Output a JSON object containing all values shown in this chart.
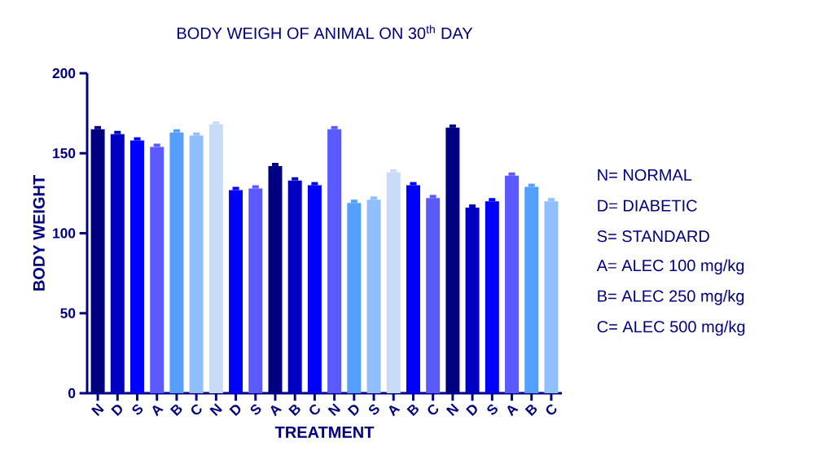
{
  "chart_data": {
    "type": "bar",
    "title": "BODY WEIGH OF ANIMAL ON 30$^{th}$ DAY",
    "xlabel": "TREATMENT",
    "ylabel": "BODY WEIGHT",
    "categories": [
      "N",
      "D",
      "S",
      "A",
      "B",
      "C",
      "N",
      "D",
      "S",
      "A",
      "B",
      "C",
      "N",
      "D",
      "S",
      "A",
      "B",
      "C",
      "N",
      "D",
      "S",
      "A",
      "B",
      "C"
    ],
    "values": [
      165,
      162,
      158,
      154,
      163,
      161,
      168,
      127,
      128,
      142,
      133,
      130,
      165,
      119,
      121,
      138,
      130,
      122,
      166,
      116,
      120,
      136,
      129,
      120
    ],
    "errors": [
      [
        165,
        167
      ],
      [
        162,
        164
      ],
      [
        158,
        160
      ],
      [
        154,
        156
      ],
      [
        163,
        165
      ],
      [
        161,
        163
      ],
      [
        168,
        170
      ],
      [
        127,
        129
      ],
      [
        128,
        130
      ],
      [
        142,
        144
      ],
      [
        133,
        135
      ],
      [
        130,
        132
      ],
      [
        165,
        167
      ],
      [
        119,
        121
      ],
      [
        121,
        123
      ],
      [
        138,
        140
      ],
      [
        130,
        132
      ],
      [
        122,
        124
      ],
      [
        166,
        168
      ],
      [
        116,
        118
      ],
      [
        120,
        122
      ],
      [
        136,
        138
      ],
      [
        129,
        131
      ],
      [
        120,
        122
      ]
    ],
    "colors": [
      "#000080",
      "#0000c0",
      "#0000ff",
      "#5a5aff",
      "#55a0ff",
      "#90bfff",
      "#c8dcf8",
      "#0000ff",
      "#5a5aff",
      "#000080",
      "#0000c0",
      "#0000ff",
      "#5a5aff",
      "#55a0ff",
      "#90bfff",
      "#c8dcf8",
      "#0000ff",
      "#5a5aff",
      "#000080",
      "#0000c0",
      "#0000ff",
      "#5a5aff",
      "#55a0ff",
      "#90bfff"
    ],
    "ylim": [
      0,
      200
    ],
    "yticks": [
      0,
      50,
      100,
      150,
      200
    ],
    "annotations": [
      "N= NORMAL",
      "D= DIABETIC",
      "S= STANDARD",
      "A= ALEC 100 mg/kg",
      "B= ALEC 250 mg/kg",
      "C= ALEC 500 mg/kg"
    ]
  }
}
